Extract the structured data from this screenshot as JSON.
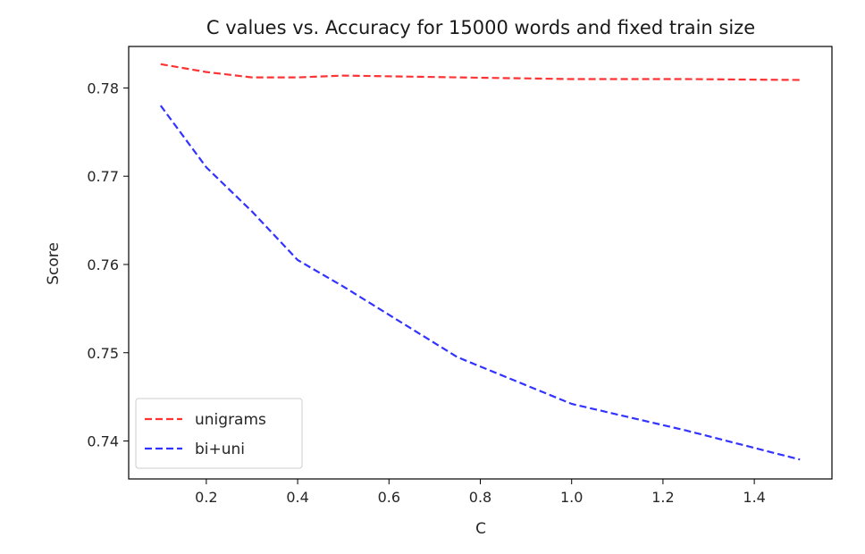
{
  "chart_data": {
    "type": "line",
    "title": "C values vs. Accuracy for 15000 words and fixed train size",
    "xlabel": "C",
    "ylabel": "Score",
    "xlim": [
      0.03,
      1.57
    ],
    "ylim": [
      0.7357,
      0.7847
    ],
    "xticks": [
      0.2,
      0.4,
      0.6,
      0.8,
      1.0,
      1.2,
      1.4
    ],
    "xtick_labels": [
      "0.2",
      "0.4",
      "0.6",
      "0.8",
      "1.0",
      "1.2",
      "1.4"
    ],
    "yticks": [
      0.74,
      0.75,
      0.76,
      0.77,
      0.78
    ],
    "ytick_labels": [
      "0.74",
      "0.75",
      "0.76",
      "0.77",
      "0.78"
    ],
    "grid": false,
    "legend_position": "lower-left",
    "series": [
      {
        "name": "unigrams",
        "color": "#ff3333",
        "line_style": "dashed",
        "x": [
          0.1,
          0.2,
          0.3,
          0.4,
          0.5,
          0.75,
          1.0,
          1.25,
          1.5
        ],
        "y": [
          0.7827,
          0.7818,
          0.7812,
          0.7812,
          0.7814,
          0.7812,
          0.781,
          0.781,
          0.7809
        ]
      },
      {
        "name": "bi+uni",
        "color": "#3333ff",
        "line_style": "dashed",
        "x": [
          0.1,
          0.2,
          0.3,
          0.4,
          0.5,
          0.75,
          1.0,
          1.25,
          1.5
        ],
        "y": [
          0.778,
          0.771,
          0.766,
          0.7605,
          0.7575,
          0.7495,
          0.7442,
          0.7412,
          0.7379
        ]
      }
    ]
  }
}
